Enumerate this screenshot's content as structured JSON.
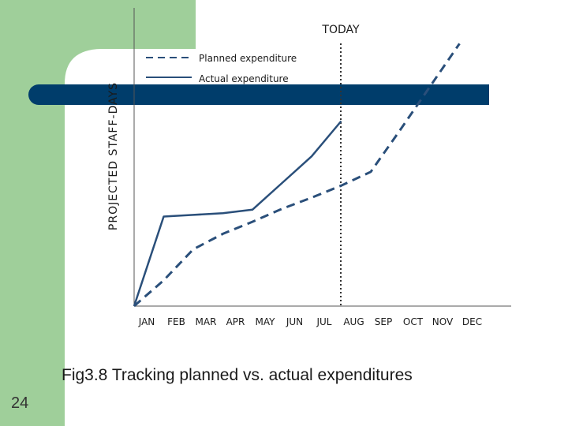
{
  "slide": {
    "caption": "Fig3.8 Tracking planned vs. actual expenditures",
    "page_number": "24",
    "colors": {
      "green": "#9fcf9a",
      "band": "#003d6b",
      "line": "#2a4f7a",
      "text": "#1a1a1a"
    }
  },
  "chart_data": {
    "type": "line",
    "title": "",
    "xlabel": "",
    "ylabel": "PROJECTED STAFF-DAYS",
    "categories": [
      "JAN",
      "FEB",
      "MAR",
      "APR",
      "MAY",
      "JUN",
      "JUL",
      "AUG",
      "SEP",
      "OCT",
      "NOV",
      "DEC"
    ],
    "series": [
      {
        "name": "Planned expenditure",
        "style": "dashed",
        "values": [
          0,
          30,
          66,
          84,
          98,
          113,
          126,
          140,
          156,
          205,
          255,
          305
        ]
      },
      {
        "name": "Actual expenditure",
        "style": "solid",
        "values": [
          0,
          104,
          106,
          108,
          112,
          143,
          174,
          215,
          null,
          null,
          null,
          null
        ]
      }
    ],
    "ylim": [
      0,
      330
    ],
    "annotations": [
      {
        "label": "TODAY",
        "at": "AUG"
      }
    ],
    "legend": "top-center",
    "grid": false
  }
}
